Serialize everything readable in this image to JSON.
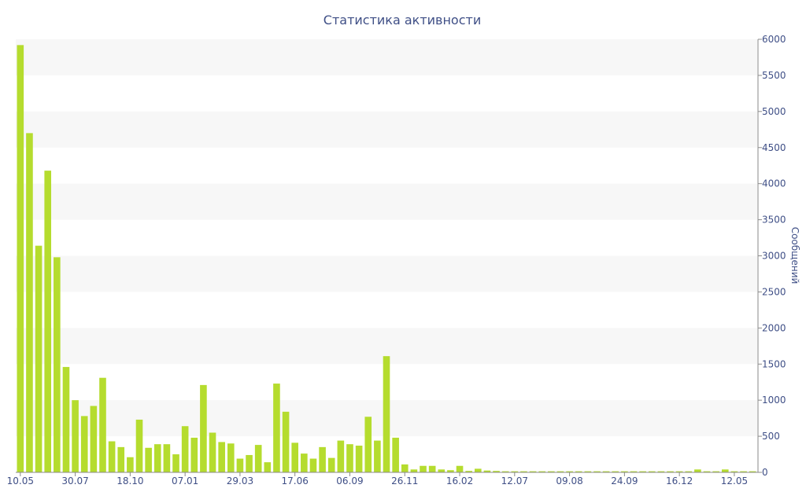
{
  "colors": {
    "bar": "#b5dc2e",
    "band": "#f7f7f7",
    "text": "#3f4f86",
    "axis": "#8a8a8a"
  },
  "chart_data": {
    "type": "bar",
    "title": "Статистика активности",
    "ylabel": "Сообщений",
    "y_axis_side": "right",
    "grid": "alternating horizontal bands",
    "ylim": [
      0,
      6000
    ],
    "y_ticks": [
      "0",
      "500",
      "1000",
      "1500",
      "2000",
      "2500",
      "3000",
      "3500",
      "4000",
      "4500",
      "5000",
      "5500",
      "6000"
    ],
    "x_tick_labels": [
      {
        "index": 0,
        "label": "10.05"
      },
      {
        "index": 6,
        "label": "30.07"
      },
      {
        "index": 12,
        "label": "18.10"
      },
      {
        "index": 18,
        "label": "07.01"
      },
      {
        "index": 24,
        "label": "29.03"
      },
      {
        "index": 30,
        "label": "17.06"
      },
      {
        "index": 36,
        "label": "06.09"
      },
      {
        "index": 42,
        "label": "26.11"
      },
      {
        "index": 48,
        "label": "16.02"
      },
      {
        "index": 54,
        "label": "12.07"
      },
      {
        "index": 60,
        "label": "09.08"
      },
      {
        "index": 66,
        "label": "24.09"
      },
      {
        "index": 72,
        "label": "16.12"
      },
      {
        "index": 78,
        "label": "12.05"
      }
    ],
    "values": [
      5920,
      4700,
      3140,
      4180,
      2980,
      1460,
      1000,
      780,
      920,
      1310,
      430,
      350,
      210,
      730,
      340,
      390,
      390,
      250,
      640,
      480,
      1210,
      550,
      420,
      400,
      190,
      240,
      380,
      140,
      1230,
      840,
      410,
      260,
      190,
      350,
      200,
      440,
      390,
      370,
      770,
      440,
      1610,
      480,
      110,
      40,
      90,
      90,
      40,
      30,
      90,
      20,
      50,
      25,
      20,
      15,
      15,
      15,
      15,
      15,
      15,
      15,
      15,
      15,
      15,
      15,
      15,
      15,
      15,
      15,
      15,
      15,
      15,
      15,
      15,
      15,
      40,
      15,
      15,
      40,
      15,
      15,
      15
    ]
  }
}
